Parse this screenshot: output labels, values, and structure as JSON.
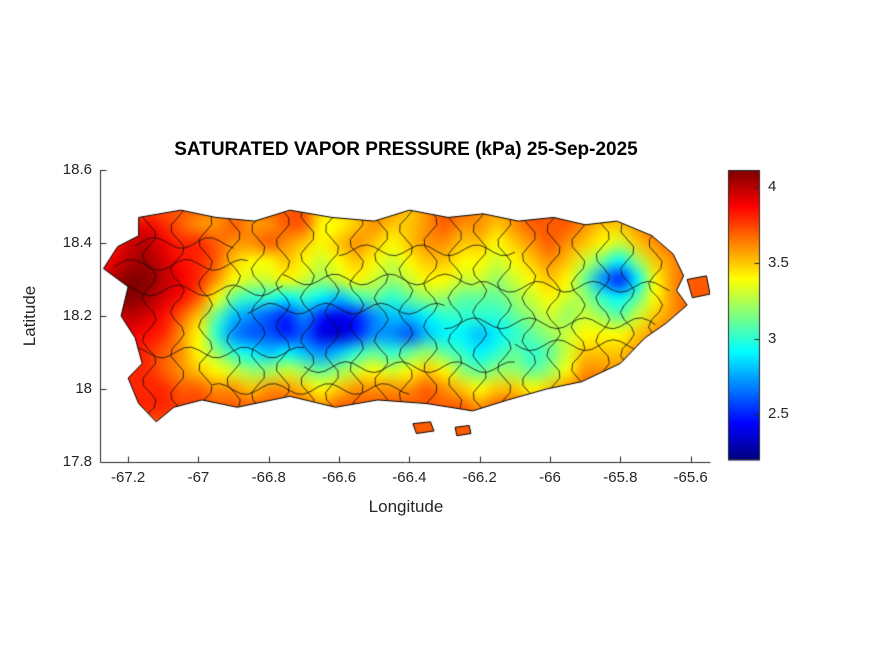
{
  "chart_data": {
    "type": "heatmap",
    "title": "SATURATED VAPOR PRESSURE (kPa) 25-Sep-2025",
    "xlabel": "Longitude",
    "ylabel": "Latitude",
    "units": "kPa",
    "xlim": [
      -67.28,
      -65.545
    ],
    "ylim": [
      17.8,
      18.6
    ],
    "xticks": [
      -67.2,
      -67,
      -66.8,
      -66.6,
      -66.4,
      -66.2,
      -66,
      -65.8,
      -65.6
    ],
    "yticks": [
      17.8,
      18,
      18.2,
      18.4,
      18.6
    ],
    "colorbar": {
      "colormap": "jet",
      "clim": [
        2.2,
        4.11
      ],
      "ticks": [
        2.5,
        3,
        3.5,
        4
      ],
      "position": "right"
    },
    "grid": {
      "lon_start": -67.3,
      "lon_step": 0.05,
      "lat_start": 18.55,
      "lat_step": -0.05,
      "ncols": 36,
      "nrows": 15,
      "values": [
        [
          3.6,
          3.6,
          3.6,
          3.6,
          3.6,
          3.6,
          3.6,
          3.6,
          3.6,
          3.6,
          3.6,
          3.6,
          3.6,
          3.6,
          3.6,
          3.6,
          3.6,
          3.6,
          3.6,
          3.6,
          3.6,
          3.6,
          3.6,
          3.6,
          3.6,
          3.6,
          3.6,
          3.6,
          3.6,
          3.6,
          3.6,
          3.6,
          3.6,
          3.6,
          3.6,
          3.6
        ],
        [
          3.5,
          3.5,
          3.6,
          3.7,
          3.7,
          3.7,
          3.7,
          3.6,
          3.6,
          3.6,
          3.7,
          3.7,
          3.7,
          3.5,
          3.5,
          3.5,
          3.6,
          3.6,
          3.5,
          3.6,
          3.7,
          3.7,
          3.6,
          3.6,
          3.6,
          3.7,
          3.7,
          3.7,
          3.7,
          3.7,
          3.7,
          3.6,
          3.6,
          3.6,
          3.6,
          3.6
        ],
        [
          3.6,
          3.7,
          3.8,
          3.9,
          3.8,
          3.7,
          3.6,
          3.6,
          3.7,
          3.6,
          3.6,
          3.7,
          3.7,
          3.4,
          3.4,
          3.5,
          3.6,
          3.5,
          3.5,
          3.6,
          3.7,
          3.6,
          3.6,
          3.5,
          3.6,
          3.7,
          3.7,
          3.7,
          3.6,
          3.5,
          3.5,
          3.6,
          3.7,
          3.7,
          3.6,
          3.6
        ],
        [
          3.7,
          3.8,
          3.95,
          4.0,
          3.9,
          3.8,
          3.8,
          3.7,
          3.6,
          3.6,
          3.7,
          3.6,
          3.5,
          3.4,
          3.5,
          3.6,
          3.5,
          3.4,
          3.5,
          3.6,
          3.6,
          3.5,
          3.5,
          3.4,
          3.5,
          3.6,
          3.7,
          3.6,
          3.5,
          3.4,
          3.3,
          3.5,
          3.6,
          3.7,
          3.7,
          3.6
        ],
        [
          3.8,
          3.9,
          4.0,
          4.05,
          3.95,
          3.85,
          3.8,
          3.7,
          3.5,
          3.4,
          3.4,
          3.5,
          3.4,
          3.3,
          3.4,
          3.5,
          3.4,
          3.3,
          3.4,
          3.5,
          3.5,
          3.4,
          3.4,
          3.3,
          3.4,
          3.5,
          3.6,
          3.5,
          3.3,
          3.1,
          2.9,
          3.2,
          3.5,
          3.6,
          3.7,
          3.6
        ],
        [
          3.9,
          4.0,
          4.1,
          4.1,
          4.0,
          3.9,
          3.8,
          3.6,
          3.4,
          3.3,
          3.3,
          3.4,
          3.3,
          3.2,
          3.3,
          3.4,
          3.3,
          3.2,
          3.3,
          3.4,
          3.4,
          3.3,
          3.3,
          3.2,
          3.3,
          3.4,
          3.5,
          3.4,
          3.1,
          2.7,
          2.5,
          2.9,
          3.4,
          3.6,
          3.7,
          3.7
        ],
        [
          3.9,
          4.0,
          4.1,
          4.05,
          3.95,
          3.85,
          3.7,
          3.4,
          3.1,
          3.0,
          3.0,
          2.9,
          3.0,
          2.9,
          2.8,
          3.0,
          3.1,
          3.0,
          3.1,
          3.2,
          3.2,
          3.1,
          3.1,
          3.1,
          3.2,
          3.3,
          3.4,
          3.3,
          3.2,
          3.0,
          2.9,
          3.1,
          3.4,
          3.6,
          3.7,
          3.7
        ],
        [
          3.8,
          3.9,
          4.0,
          3.95,
          3.85,
          3.7,
          3.5,
          3.1,
          2.8,
          2.7,
          2.6,
          2.5,
          2.7,
          2.5,
          2.4,
          2.5,
          2.7,
          2.8,
          2.8,
          2.9,
          3.0,
          3.0,
          3.0,
          3.0,
          3.1,
          3.2,
          3.3,
          3.2,
          3.3,
          3.2,
          3.1,
          3.3,
          3.5,
          3.6,
          3.7,
          3.7
        ],
        [
          3.8,
          3.85,
          3.9,
          3.85,
          3.8,
          3.6,
          3.4,
          3.0,
          2.7,
          2.6,
          2.6,
          2.5,
          2.6,
          2.4,
          2.35,
          2.5,
          2.7,
          2.7,
          2.6,
          2.8,
          2.9,
          2.9,
          2.8,
          2.9,
          3.0,
          3.1,
          3.2,
          3.3,
          3.4,
          3.4,
          3.4,
          3.5,
          3.6,
          3.7,
          3.7,
          3.7
        ],
        [
          3.7,
          3.8,
          3.85,
          3.8,
          3.7,
          3.6,
          3.4,
          3.2,
          3.0,
          2.9,
          2.8,
          2.9,
          2.8,
          2.7,
          2.8,
          3.0,
          3.1,
          3.0,
          3.1,
          3.2,
          3.1,
          3.0,
          2.9,
          3.0,
          3.1,
          3.0,
          3.1,
          3.3,
          3.5,
          3.5,
          3.5,
          3.6,
          3.7,
          3.7,
          3.7,
          3.7
        ],
        [
          3.7,
          3.8,
          3.8,
          3.8,
          3.7,
          3.6,
          3.5,
          3.4,
          3.3,
          3.2,
          3.2,
          3.3,
          3.2,
          3.1,
          3.2,
          3.3,
          3.4,
          3.3,
          3.4,
          3.5,
          3.4,
          3.2,
          3.1,
          3.2,
          3.2,
          3.1,
          3.2,
          3.4,
          3.6,
          3.6,
          3.6,
          3.7,
          3.7,
          3.7,
          3.7,
          3.7
        ],
        [
          3.7,
          3.75,
          3.8,
          3.8,
          3.8,
          3.7,
          3.7,
          3.6,
          3.6,
          3.5,
          3.6,
          3.6,
          3.5,
          3.4,
          3.5,
          3.6,
          3.6,
          3.6,
          3.6,
          3.7,
          3.6,
          3.5,
          3.4,
          3.5,
          3.5,
          3.4,
          3.5,
          3.6,
          3.7,
          3.7,
          3.7,
          3.7,
          3.7,
          3.7,
          3.7,
          3.7
        ],
        [
          3.75,
          3.8,
          3.8,
          3.8,
          3.8,
          3.75,
          3.75,
          3.7,
          3.7,
          3.7,
          3.7,
          3.7,
          3.7,
          3.6,
          3.7,
          3.7,
          3.7,
          3.7,
          3.7,
          3.7,
          3.7,
          3.7,
          3.6,
          3.7,
          3.7,
          3.6,
          3.7,
          3.7,
          3.7,
          3.7,
          3.7,
          3.7,
          3.7,
          3.7,
          3.7,
          3.7
        ],
        [
          3.7,
          3.7,
          3.7,
          3.7,
          3.7,
          3.7,
          3.7,
          3.7,
          3.7,
          3.7,
          3.7,
          3.7,
          3.7,
          3.7,
          3.7,
          3.7,
          3.7,
          3.7,
          3.7,
          3.7,
          3.7,
          3.7,
          3.7,
          3.7,
          3.7,
          3.7,
          3.7,
          3.7,
          3.7,
          3.7,
          3.7,
          3.7,
          3.7,
          3.7,
          3.7,
          3.7
        ],
        [
          3.7,
          3.7,
          3.7,
          3.7,
          3.7,
          3.7,
          3.7,
          3.7,
          3.7,
          3.7,
          3.7,
          3.7,
          3.7,
          3.7,
          3.7,
          3.7,
          3.7,
          3.7,
          3.7,
          3.7,
          3.7,
          3.7,
          3.7,
          3.7,
          3.7,
          3.7,
          3.7,
          3.7,
          3.7,
          3.7,
          3.7,
          3.7,
          3.7,
          3.7,
          3.7,
          3.7
        ]
      ]
    },
    "coastline": [
      [
        [
          -67.17,
          18.47
        ],
        [
          -67.05,
          18.49
        ],
        [
          -66.95,
          18.47
        ],
        [
          -66.84,
          18.46
        ],
        [
          -66.74,
          18.49
        ],
        [
          -66.62,
          18.47
        ],
        [
          -66.5,
          18.46
        ],
        [
          -66.4,
          18.49
        ],
        [
          -66.29,
          18.47
        ],
        [
          -66.19,
          18.48
        ],
        [
          -66.09,
          18.46
        ],
        [
          -65.99,
          18.47
        ],
        [
          -65.9,
          18.45
        ],
        [
          -65.81,
          18.46
        ],
        [
          -65.71,
          18.42
        ],
        [
          -65.65,
          18.37
        ],
        [
          -65.62,
          18.31
        ],
        [
          -65.64,
          18.27
        ],
        [
          -65.61,
          18.23
        ],
        [
          -65.67,
          18.18
        ],
        [
          -65.73,
          18.14
        ],
        [
          -65.8,
          18.07
        ],
        [
          -65.91,
          18.02
        ],
        [
          -66.01,
          18.0
        ],
        [
          -66.12,
          17.97
        ],
        [
          -66.22,
          17.94
        ],
        [
          -66.35,
          17.96
        ],
        [
          -66.49,
          17.97
        ],
        [
          -66.61,
          17.95
        ],
        [
          -66.74,
          17.98
        ],
        [
          -66.89,
          17.95
        ],
        [
          -66.99,
          17.97
        ],
        [
          -67.07,
          17.95
        ],
        [
          -67.12,
          17.91
        ],
        [
          -67.17,
          17.96
        ],
        [
          -67.2,
          18.03
        ],
        [
          -67.16,
          18.07
        ],
        [
          -67.18,
          18.14
        ],
        [
          -67.22,
          18.2
        ],
        [
          -67.2,
          18.28
        ],
        [
          -67.27,
          18.33
        ],
        [
          -67.23,
          18.39
        ],
        [
          -67.17,
          18.42
        ]
      ],
      [
        [
          -65.61,
          18.3
        ],
        [
          -65.555,
          18.31
        ],
        [
          -65.545,
          18.26
        ],
        [
          -65.595,
          18.25
        ]
      ],
      [
        [
          -66.39,
          17.905
        ],
        [
          -66.34,
          17.91
        ],
        [
          -66.33,
          17.885
        ],
        [
          -66.38,
          17.878
        ]
      ],
      [
        [
          -66.27,
          17.895
        ],
        [
          -66.23,
          17.9
        ],
        [
          -66.225,
          17.878
        ],
        [
          -66.265,
          17.872
        ]
      ]
    ],
    "muni_vertical_lons": [
      -67.14,
      -67.06,
      -66.98,
      -66.9,
      -66.83,
      -66.76,
      -66.69,
      -66.62,
      -66.55,
      -66.48,
      -66.41,
      -66.34,
      -66.27,
      -66.2,
      -66.13,
      -66.06,
      -65.99,
      -65.92,
      -65.85,
      -65.78,
      -65.7
    ],
    "muni_horizontal_segments": [
      {
        "lat": 18.34,
        "lon0": -67.24,
        "lon1": -66.86
      },
      {
        "lat": 18.27,
        "lon0": -67.2,
        "lon1": -66.76
      },
      {
        "lat": 18.3,
        "lon0": -66.76,
        "lon1": -66.22
      },
      {
        "lat": 18.22,
        "lon0": -66.86,
        "lon1": -66.3
      },
      {
        "lat": 18.28,
        "lon0": -66.22,
        "lon1": -65.66
      },
      {
        "lat": 18.18,
        "lon0": -66.3,
        "lon1": -65.7
      },
      {
        "lat": 18.1,
        "lon0": -67.22,
        "lon1": -66.7
      },
      {
        "lat": 18.06,
        "lon0": -66.7,
        "lon1": -66.1
      },
      {
        "lat": 18.12,
        "lon0": -66.1,
        "lon1": -65.74
      },
      {
        "lat": 18.0,
        "lon0": -66.96,
        "lon1": -66.4
      },
      {
        "lat": 18.4,
        "lon0": -67.18,
        "lon1": -66.9
      },
      {
        "lat": 18.38,
        "lon0": -66.6,
        "lon1": -66.1
      }
    ]
  }
}
